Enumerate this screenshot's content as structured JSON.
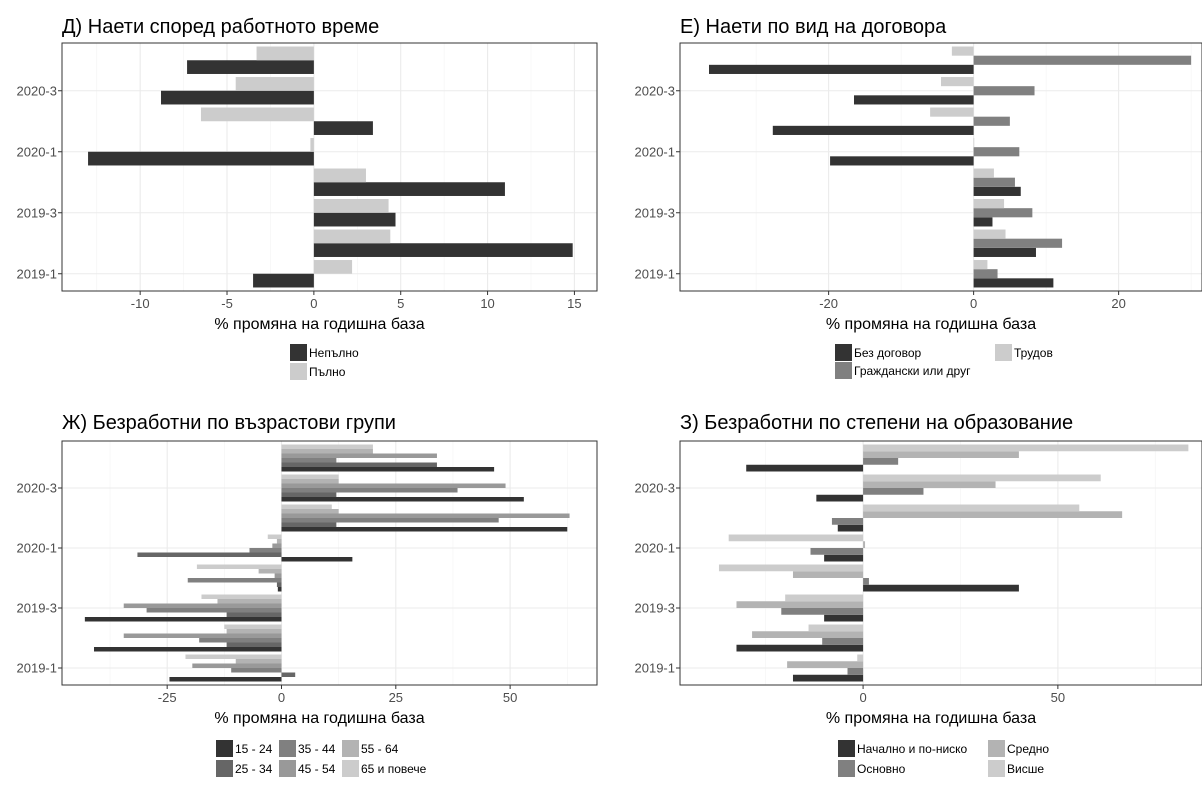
{
  "colors": {
    "c1": "#333333",
    "c2": "#666666",
    "c3": "#808080",
    "c4": "#999999",
    "c5": "#b3b3b3",
    "c6": "#cccccc",
    "grid": "#ebebeb",
    "border": "#333333",
    "tick_text": "#4d4d4d"
  },
  "chart_data": [
    {
      "id": "d",
      "type": "bar",
      "orientation": "horizontal",
      "title": "Д) Наети според работното време",
      "xlabel": "% промяна на годишна база",
      "xlim": [
        -14.5,
        16.3
      ],
      "xticks": [
        -10,
        -5,
        0,
        5,
        10,
        15
      ],
      "xtick_labels": [
        "-10",
        "-5",
        "0",
        "5",
        "10",
        "15"
      ],
      "ytick_labels": [
        "2019-1",
        "2019-3",
        "2020-1",
        "2020-3"
      ],
      "legend_layout": "column",
      "grid": true,
      "categories": [
        "2019-1",
        "2019-2",
        "2019-3",
        "2019-4",
        "2020-1",
        "2020-2",
        "2020-3",
        "2020-4"
      ],
      "series": [
        {
          "name": "Непълно",
          "color": "#333333",
          "values": [
            -3.5,
            14.9,
            4.7,
            11.0,
            -13.0,
            3.4,
            -8.8,
            -7.3
          ]
        },
        {
          "name": "Пълно",
          "color": "#cccccc",
          "values": [
            2.2,
            4.4,
            4.3,
            3.0,
            -0.2,
            -6.5,
            -4.5,
            -3.3
          ]
        }
      ]
    },
    {
      "id": "e",
      "type": "bar",
      "orientation": "horizontal",
      "title": "Е) Наети по вид на договора",
      "xlabel": "% промяна на годишна база",
      "xlim": [
        -40.5,
        31.5
      ],
      "xticks": [
        -20,
        0,
        20
      ],
      "xtick_labels": [
        "-20",
        "0",
        "20"
      ],
      "ytick_labels": [
        "2019-1",
        "2019-3",
        "2020-1",
        "2020-3"
      ],
      "legend_layout": "grid",
      "grid": true,
      "categories": [
        "2019-1",
        "2019-2",
        "2019-3",
        "2019-4",
        "2020-1",
        "2020-2",
        "2020-3",
        "2020-4"
      ],
      "series": [
        {
          "name": "Без договор",
          "color": "#333333",
          "values": [
            11.0,
            8.6,
            2.6,
            6.5,
            -19.8,
            -27.7,
            -16.5,
            -36.5
          ]
        },
        {
          "name": "Граждански или друг",
          "color": "#808080",
          "values": [
            3.3,
            12.2,
            8.1,
            5.7,
            6.3,
            5.0,
            8.4,
            30.0
          ]
        },
        {
          "name": "Трудов",
          "color": "#cccccc",
          "values": [
            1.9,
            4.4,
            4.2,
            2.8,
            0.0,
            -6.0,
            -4.5,
            -3.0
          ]
        }
      ]
    },
    {
      "id": "zh",
      "type": "bar",
      "orientation": "horizontal",
      "title": "Ж) Безработни по възрастови групи",
      "xlabel": "% промяна на годишна база",
      "xlim": [
        -48,
        69
      ],
      "xticks": [
        -25,
        0,
        25,
        50
      ],
      "xtick_labels": [
        "-25",
        "0",
        "25",
        "50"
      ],
      "ytick_labels": [
        "2019-1",
        "2019-3",
        "2020-1",
        "2020-3"
      ],
      "legend_layout": "grid",
      "grid": true,
      "categories": [
        "2019-1",
        "2019-2",
        "2019-3",
        "2019-4",
        "2020-1",
        "2020-2",
        "2020-3",
        "2020-4"
      ],
      "series": [
        {
          "name": "15 - 24",
          "color": "#333333",
          "values": [
            -24.5,
            -41.0,
            -43.0,
            -0.8,
            15.5,
            62.5,
            53.0,
            46.5
          ]
        },
        {
          "name": "25 - 34",
          "color": "#666666",
          "values": [
            3.0,
            -12.0,
            -12.0,
            -1.0,
            -31.5,
            12.0,
            12.0,
            34.0
          ]
        },
        {
          "name": "35 - 44",
          "color": "#808080",
          "values": [
            -11.0,
            -18.0,
            -29.5,
            -20.5,
            -7.0,
            47.5,
            38.5,
            12.0
          ]
        },
        {
          "name": "45 - 54",
          "color": "#999999",
          "values": [
            -19.5,
            -34.5,
            -34.5,
            -1.5,
            -2.0,
            63.0,
            49.0,
            34.0
          ]
        },
        {
          "name": "55 - 64",
          "color": "#b3b3b3",
          "values": [
            -10.0,
            -12.0,
            -14.0,
            -5.0,
            -1.0,
            12.5,
            12.5,
            20.0
          ]
        },
        {
          "name": "65  и повече",
          "color": "#cccccc",
          "values": [
            -21.0,
            -12.5,
            -17.5,
            -18.5,
            -3.0,
            11.0,
            12.5,
            20.0
          ]
        }
      ]
    },
    {
      "id": "z",
      "type": "bar",
      "orientation": "horizontal",
      "title": "З) Безработни по степени на образование",
      "xlabel": "% промяна на годишна база",
      "xlim": [
        -47,
        87
      ],
      "xticks": [
        0,
        50
      ],
      "xtick_labels": [
        "0",
        "50"
      ],
      "ytick_labels": [
        "2019-1",
        "2019-3",
        "2020-1",
        "2020-3"
      ],
      "legend_layout": "grid",
      "grid": true,
      "categories": [
        "2019-1",
        "2019-2",
        "2019-3",
        "2019-4",
        "2020-1",
        "2020-2",
        "2020-3",
        "2020-4"
      ],
      "series": [
        {
          "name": "Начално и по-ниско",
          "color": "#333333",
          "values": [
            -18.0,
            -32.5,
            -10.0,
            40.0,
            -10.0,
            -6.5,
            -12.0,
            -30.0
          ]
        },
        {
          "name": "Основно",
          "color": "#808080",
          "values": [
            -4.0,
            -10.5,
            -21.0,
            1.5,
            -13.5,
            -8.0,
            15.5,
            9.0
          ]
        },
        {
          "name": "Средно",
          "color": "#b3b3b3",
          "values": [
            -19.5,
            -28.5,
            -32.5,
            -18.0,
            0.5,
            66.5,
            34.0,
            40.0
          ]
        },
        {
          "name": "Висше",
          "color": "#cccccc",
          "values": [
            -1.5,
            -14.0,
            -20.0,
            -37.0,
            -34.5,
            55.5,
            61.0,
            83.5
          ]
        }
      ]
    }
  ]
}
